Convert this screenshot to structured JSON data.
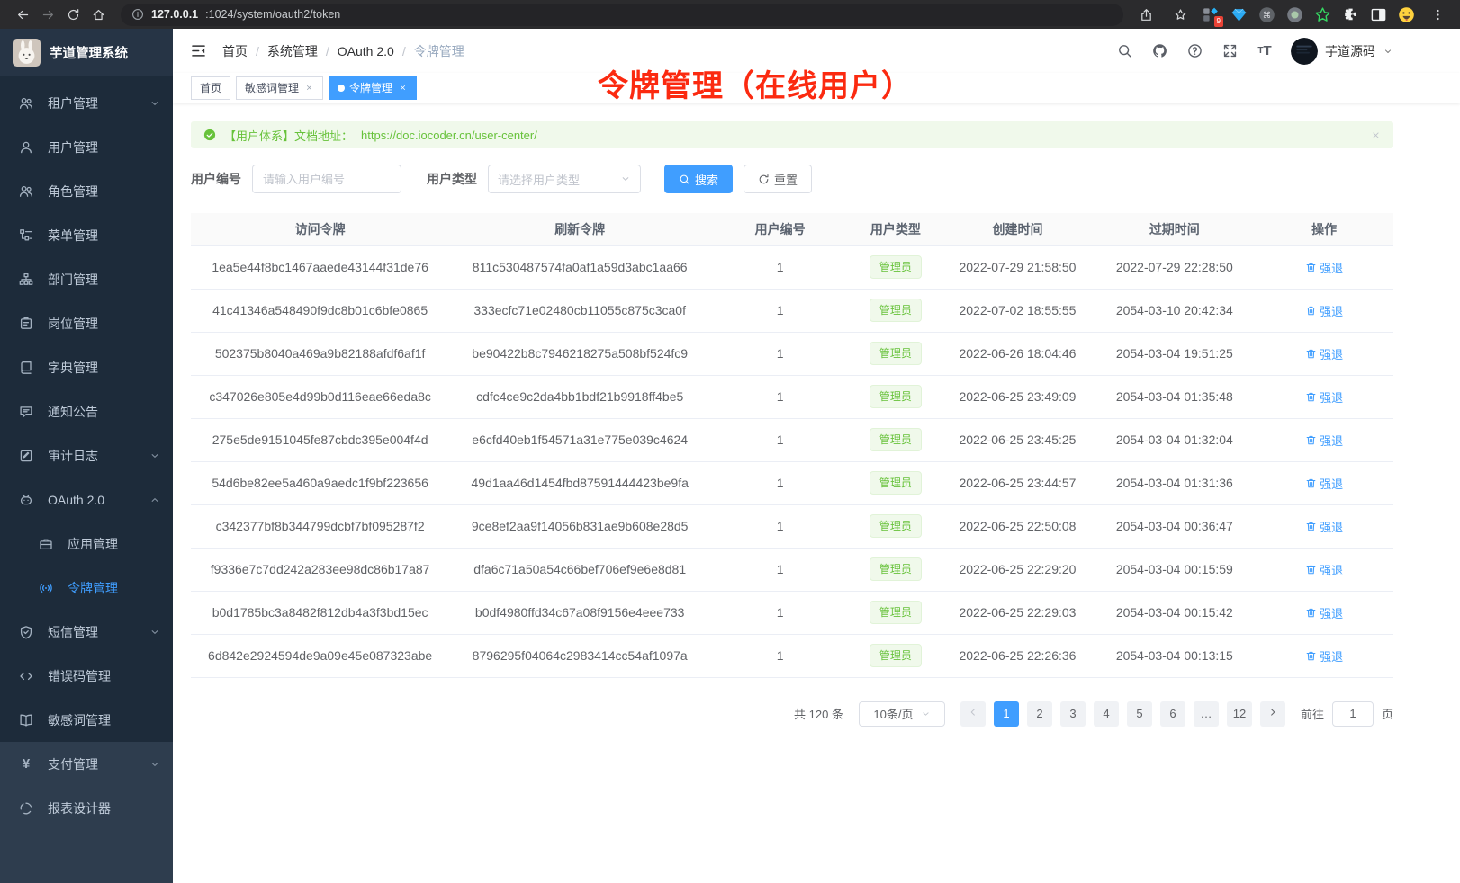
{
  "colors": {
    "primary": "#409eff",
    "success": "#67c23a",
    "annotation_red": "#fb2a10"
  },
  "browser": {
    "url_host": "127.0.0.1",
    "url_rest": ":1024/system/oauth2/token",
    "extension_badge": "9"
  },
  "sidebar": {
    "title": "芋道管理系统",
    "items": [
      {
        "label": "租户管理",
        "icon": "users-icon",
        "chevron": "down"
      },
      {
        "label": "用户管理",
        "icon": "user-icon"
      },
      {
        "label": "角色管理",
        "icon": "users-icon"
      },
      {
        "label": "菜单管理",
        "icon": "tree-icon"
      },
      {
        "label": "部门管理",
        "icon": "org-icon"
      },
      {
        "label": "岗位管理",
        "icon": "badge-icon"
      },
      {
        "label": "字典管理",
        "icon": "dict-icon"
      },
      {
        "label": "通知公告",
        "icon": "chat-icon"
      },
      {
        "label": "审计日志",
        "icon": "log-icon",
        "chevron": "down"
      },
      {
        "label": "OAuth 2.0",
        "icon": "robot-icon",
        "chevron": "up"
      },
      {
        "label": "应用管理",
        "icon": "briefcase-icon",
        "sub": true
      },
      {
        "label": "令牌管理",
        "icon": "broadcast-icon",
        "sub": true,
        "active": true
      },
      {
        "label": "短信管理",
        "icon": "shield-icon",
        "chevron": "down"
      },
      {
        "label": "错误码管理",
        "icon": "code-icon"
      },
      {
        "label": "敏感词管理",
        "icon": "book-open-icon"
      },
      {
        "label": "支付管理",
        "icon": "yen-icon",
        "chevron": "down",
        "section": "light"
      },
      {
        "label": "报表设计器",
        "icon": "report-icon",
        "section": "light"
      }
    ]
  },
  "navbar": {
    "breadcrumb": [
      {
        "label": "首页"
      },
      {
        "label": "系统管理"
      },
      {
        "label": "OAuth 2.0"
      },
      {
        "label": "令牌管理"
      }
    ],
    "username": "芋道源码"
  },
  "tabs": [
    {
      "label": "首页"
    },
    {
      "label": "敏感词管理",
      "closable": true
    },
    {
      "label": "令牌管理",
      "closable": true,
      "active": true
    }
  ],
  "overlay_title": "令牌管理（在线用户）",
  "alert": {
    "message": "【用户体系】文档地址：",
    "link": "https://doc.iocoder.cn/user-center/"
  },
  "filters": {
    "user_id_label": "用户编号",
    "user_id_placeholder": "请输入用户编号",
    "user_type_label": "用户类型",
    "user_type_placeholder": "请选择用户类型",
    "search_label": "搜索",
    "reset_label": "重置"
  },
  "table": {
    "headers": [
      "访问令牌",
      "刷新令牌",
      "用户编号",
      "用户类型",
      "创建时间",
      "过期时间",
      "操作"
    ],
    "user_type_badge": "管理员",
    "action_label": "强退",
    "rows": [
      {
        "access": "1ea5e44f8bc1467aaede43144f31de76",
        "refresh": "811c530487574fa0af1a59d3abc1aa66",
        "user_id": "1",
        "create_time": "2022-07-29 21:58:50",
        "expire_time": "2022-07-29 22:28:50"
      },
      {
        "access": "41c41346a548490f9dc8b01c6bfe0865",
        "refresh": "333ecfc71e02480cb11055c875c3ca0f",
        "user_id": "1",
        "create_time": "2022-07-02 18:55:55",
        "expire_time": "2054-03-10 20:42:34"
      },
      {
        "access": "502375b8040a469a9b82188afdf6af1f",
        "refresh": "be90422b8c7946218275a508bf524fc9",
        "user_id": "1",
        "create_time": "2022-06-26 18:04:46",
        "expire_time": "2054-03-04 19:51:25"
      },
      {
        "access": "c347026e805e4d99b0d116eae66eda8c",
        "refresh": "cdfc4ce9c2da4bb1bdf21b9918ff4be5",
        "user_id": "1",
        "create_time": "2022-06-25 23:49:09",
        "expire_time": "2054-03-04 01:35:48"
      },
      {
        "access": "275e5de9151045fe87cbdc395e004f4d",
        "refresh": "e6cfd40eb1f54571a31e775e039c4624",
        "user_id": "1",
        "create_time": "2022-06-25 23:45:25",
        "expire_time": "2054-03-04 01:32:04"
      },
      {
        "access": "54d6be82ee5a460a9aedc1f9bf223656",
        "refresh": "49d1aa46d1454fbd87591444423be9fa",
        "user_id": "1",
        "create_time": "2022-06-25 23:44:57",
        "expire_time": "2054-03-04 01:31:36"
      },
      {
        "access": "c342377bf8b344799dcbf7bf095287f2",
        "refresh": "9ce8ef2aa9f14056b831ae9b608e28d5",
        "user_id": "1",
        "create_time": "2022-06-25 22:50:08",
        "expire_time": "2054-03-04 00:36:47"
      },
      {
        "access": "f9336e7c7dd242a283ee98dc86b17a87",
        "refresh": "dfa6c71a50a54c66bef706ef9e6e8d81",
        "user_id": "1",
        "create_time": "2022-06-25 22:29:20",
        "expire_time": "2054-03-04 00:15:59"
      },
      {
        "access": "b0d1785bc3a8482f812db4a3f3bd15ec",
        "refresh": "b0df4980ffd34c67a08f9156e4eee733",
        "user_id": "1",
        "create_time": "2022-06-25 22:29:03",
        "expire_time": "2054-03-04 00:15:42"
      },
      {
        "access": "6d842e2924594de9a09e45e087323abe",
        "refresh": "8796295f04064c2983414cc54af1097a",
        "user_id": "1",
        "create_time": "2022-06-25 22:26:36",
        "expire_time": "2054-03-04 00:13:15"
      }
    ]
  },
  "pagination": {
    "total": "共 120 条",
    "page_size": "10条/页",
    "pages": [
      "1",
      "2",
      "3",
      "4",
      "5",
      "6",
      "…",
      "12"
    ],
    "active_page": "1",
    "goto_label": "前往",
    "goto_value": "1",
    "page_unit": "页"
  }
}
